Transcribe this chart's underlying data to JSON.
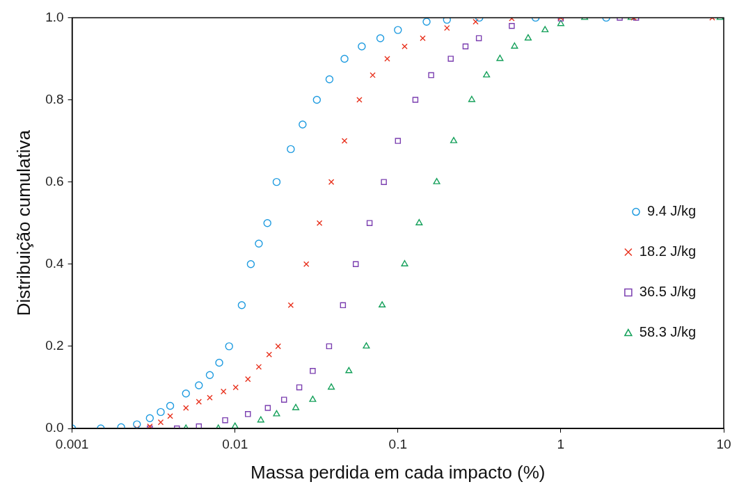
{
  "chart_data": {
    "type": "scatter",
    "xlabel": "Massa perdida em cada impacto (%)",
    "ylabel": "Distribuição cumulativa",
    "log": "x",
    "xlim": [
      0.001,
      10
    ],
    "xticks": [
      0.001,
      0.01,
      0.1,
      1,
      10
    ],
    "ylim": [
      0,
      1
    ],
    "yticks": [
      {
        "value": 0,
        "label": "0.0"
      },
      {
        "value": 0.2,
        "label": "0.2"
      },
      {
        "value": 0.4,
        "label": "0.4"
      },
      {
        "value": 0.6,
        "label": "0.6"
      },
      {
        "value": 0.8,
        "label": "0.8"
      },
      {
        "value": 1,
        "label": "1.0"
      }
    ],
    "grid": false,
    "legend": "right",
    "series": [
      {
        "name": "9.4 J/kg",
        "color": "#1e9be0",
        "marker": "circle",
        "x": [
          0.001,
          0.0015,
          0.002,
          0.0025,
          0.003,
          0.0035,
          0.004,
          0.005,
          0.006,
          0.007,
          0.008,
          0.0092,
          0.011,
          0.0125,
          0.014,
          0.0158,
          0.018,
          0.022,
          0.026,
          0.0318,
          0.038,
          0.047,
          0.06,
          0.078,
          0.1,
          0.15,
          0.2,
          0.316,
          0.7,
          1.9
        ],
        "values": [
          0,
          0,
          0.003,
          0.01,
          0.025,
          0.04,
          0.055,
          0.085,
          0.105,
          0.13,
          0.16,
          0.2,
          0.3,
          0.4,
          0.45,
          0.5,
          0.6,
          0.68,
          0.74,
          0.8,
          0.85,
          0.9,
          0.93,
          0.95,
          0.97,
          0.99,
          0.995,
          1,
          1,
          1
        ]
      },
      {
        "name": "18.2 J/kg",
        "color": "#e8321e",
        "marker": "cross",
        "x": [
          0.0025,
          0.003,
          0.0035,
          0.004,
          0.005,
          0.006,
          0.007,
          0.0085,
          0.0101,
          0.012,
          0.014,
          0.0162,
          0.0184,
          0.022,
          0.0274,
          0.033,
          0.039,
          0.047,
          0.058,
          0.07,
          0.086,
          0.11,
          0.142,
          0.2,
          0.3,
          0.5,
          1,
          2.8,
          8.5
        ],
        "values": [
          0,
          0.005,
          0.015,
          0.03,
          0.05,
          0.065,
          0.075,
          0.09,
          0.1,
          0.12,
          0.15,
          0.18,
          0.2,
          0.3,
          0.4,
          0.5,
          0.6,
          0.7,
          0.8,
          0.86,
          0.9,
          0.93,
          0.95,
          0.975,
          0.99,
          0.998,
          1,
          1,
          1
        ]
      },
      {
        "name": "36.5 J/kg",
        "color": "#7b3fb0",
        "marker": "square",
        "x": [
          0.003,
          0.0044,
          0.006,
          0.0087,
          0.012,
          0.0159,
          0.02,
          0.0248,
          0.03,
          0.0378,
          0.046,
          0.0551,
          0.067,
          0.082,
          0.1,
          0.128,
          0.16,
          0.211,
          0.26,
          0.314,
          0.5,
          1,
          2.3,
          2.9
        ],
        "values": [
          0,
          0,
          0.005,
          0.02,
          0.035,
          0.05,
          0.07,
          0.1,
          0.14,
          0.2,
          0.3,
          0.4,
          0.5,
          0.6,
          0.7,
          0.8,
          0.86,
          0.9,
          0.93,
          0.95,
          0.98,
          0.998,
          1,
          1
        ]
      },
      {
        "name": "58.3 J/kg",
        "color": "#14a05a",
        "marker": "triangle",
        "x": [
          0.005,
          0.0079,
          0.01,
          0.0144,
          0.018,
          0.0236,
          0.03,
          0.039,
          0.05,
          0.064,
          0.08,
          0.11,
          0.135,
          0.173,
          0.22,
          0.284,
          0.35,
          0.423,
          0.52,
          0.63,
          0.8,
          1,
          1.4,
          2.7,
          9.5
        ],
        "values": [
          0,
          0,
          0.005,
          0.02,
          0.035,
          0.05,
          0.07,
          0.1,
          0.14,
          0.2,
          0.3,
          0.4,
          0.5,
          0.6,
          0.7,
          0.8,
          0.86,
          0.9,
          0.93,
          0.95,
          0.97,
          0.985,
          1,
          1,
          1
        ]
      }
    ]
  }
}
